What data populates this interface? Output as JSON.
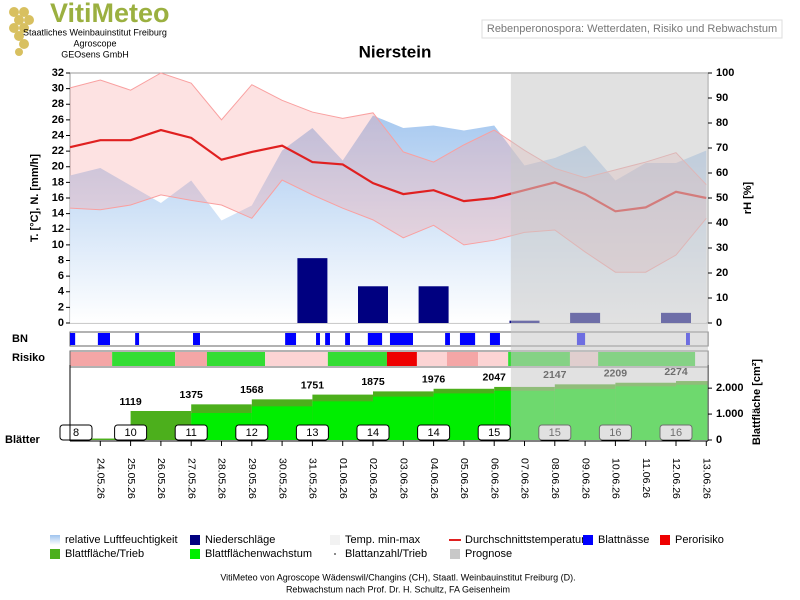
{
  "header": {
    "logo": "VitiMeteo",
    "org": [
      "Staatliches Weinbauinstitut Freiburg",
      "Agroscope",
      "GEOsens GmbH"
    ],
    "subtitle": "Rebenperonospora: Wetterdaten, Risiko und Rebwachstum"
  },
  "chart_data": {
    "type": "weather",
    "title": "Nierstein",
    "categories": [
      null,
      "24.05.26",
      "25.05.26",
      "26.05.26",
      "27.05.26",
      "28.05.26",
      "29.05.26",
      "30.05.26",
      "31.05.26",
      "01.06.26",
      "02.06.26",
      "03.06.26",
      "04.06.26",
      "05.06.26",
      "06.06.26",
      "07.06.26",
      "08.06.26",
      "09.06.26",
      "10.06.26",
      "11.06.26",
      "12.06.26",
      "13.06.26"
    ],
    "ylabel": "T. [°C], N. [mm/h]",
    "ylim": [
      0,
      32
    ],
    "yticks": [
      0,
      2,
      4,
      6,
      8,
      10,
      12,
      14,
      16,
      18,
      20,
      22,
      24,
      26,
      28,
      30,
      32
    ],
    "y2label": "rH [%]",
    "y2lim": [
      0,
      100
    ],
    "y2ticks": [
      0,
      10,
      20,
      30,
      40,
      50,
      60,
      70,
      80,
      90,
      100
    ],
    "series": [
      {
        "name": "relative Luftfeuchtigkeit",
        "color": "#a9c8ec",
        "axis": "y2",
        "values": [
          59,
          62,
          55,
          48,
          57,
          41,
          47,
          69,
          78,
          65,
          83,
          78,
          79,
          77,
          79,
          63,
          66,
          71,
          57,
          64,
          64,
          69
        ]
      },
      {
        "name": "Niederschläge",
        "color": "#000080",
        "values": [
          0,
          0,
          0,
          0,
          0,
          0,
          0,
          0,
          8.3,
          0,
          4.7,
          0,
          4.7,
          0,
          0,
          0.3,
          0,
          1.3,
          0,
          0,
          1.3,
          0
        ]
      },
      {
        "name": "Temp. min-max",
        "color": "#f9a0a0",
        "high": [
          30.1,
          31.1,
          29.8,
          32.0,
          30.7,
          26.0,
          30.5,
          28.5,
          27.0,
          26.2,
          26.9,
          21.9,
          20.6,
          22.8,
          24.7,
          22.1,
          19.8,
          18.6,
          19.6,
          20.6,
          21.8,
          17.7
        ],
        "low": [
          14.7,
          14.5,
          15.1,
          16.4,
          15.7,
          15.1,
          13.4,
          18.3,
          16.4,
          14.7,
          13.2,
          10.9,
          12.5,
          10.0,
          10.6,
          11.6,
          11.9,
          9.1,
          6.5,
          6.5,
          8.7,
          13.4
        ]
      },
      {
        "name": "Durchschnittstemperatur",
        "color": "#e02020",
        "values": [
          22.5,
          23.4,
          23.4,
          24.7,
          23.7,
          20.9,
          21.9,
          22.7,
          20.6,
          20.3,
          17.9,
          16.5,
          17.0,
          15.6,
          16.0,
          17.0,
          18.0,
          16.5,
          14.3,
          14.8,
          16.8,
          16.0
        ]
      }
    ],
    "bn": {
      "label": "BN",
      "name": "Blattnässe",
      "color": "#0000ff",
      "segments": [
        [
          0,
          0.17
        ],
        [
          0.92,
          1.32
        ],
        [
          2.15,
          2.28
        ],
        [
          4.06,
          4.29
        ],
        [
          7.1,
          7.46
        ],
        [
          8.12,
          8.25
        ],
        [
          8.42,
          8.58
        ],
        [
          9.08,
          9.24
        ],
        [
          9.83,
          10.3
        ],
        [
          10.56,
          11.32
        ],
        [
          12.38,
          12.54
        ],
        [
          12.87,
          13.37
        ],
        [
          13.86,
          14.19
        ],
        [
          16.73,
          17.0
        ],
        [
          20.33,
          20.46
        ]
      ]
    },
    "risk": {
      "label": "Risiko",
      "name": "Perorisiko",
      "color": "#ee0000",
      "segments": [
        {
          "start": 0,
          "end": 1.39,
          "color": "#f4a6a6"
        },
        {
          "start": 1.39,
          "end": 3.47,
          "color": "#33dd33"
        },
        {
          "start": 3.47,
          "end": 4.52,
          "color": "#f4a6a6"
        },
        {
          "start": 4.52,
          "end": 6.44,
          "color": "#33dd33"
        },
        {
          "start": 6.44,
          "end": 8.51,
          "color": "#fcd4d4"
        },
        {
          "start": 8.51,
          "end": 10.46,
          "color": "#33dd33"
        },
        {
          "start": 10.46,
          "end": 11.45,
          "color": "#ee0000"
        },
        {
          "start": 11.45,
          "end": 12.44,
          "color": "#fcd4d4"
        },
        {
          "start": 12.44,
          "end": 13.47,
          "color": "#f4a6a6"
        },
        {
          "start": 13.47,
          "end": 14.46,
          "color": "#fcd4d4"
        },
        {
          "start": 14.46,
          "end": 16.5,
          "color": "#33dd33"
        },
        {
          "start": 16.5,
          "end": 17.43,
          "color": "#fcd4d4"
        },
        {
          "start": 17.43,
          "end": 20.63,
          "color": "#33dd33"
        }
      ]
    },
    "leaf": {
      "label": "Blätter",
      "y3label": "Blattfläche [cm²]",
      "y3lim": [
        0,
        2700
      ],
      "y3ticks": [
        0,
        {
          "value": 1000,
          "label": "1.000"
        },
        {
          "value": 2000,
          "label": "2.000"
        }
      ],
      "area": {
        "name": "Blattfläche/Trieb",
        "color": "#4caf1c",
        "values": [
          56,
          null,
          1119,
          null,
          1375,
          null,
          1568,
          null,
          1751,
          null,
          1875,
          null,
          1976,
          null,
          2047,
          null,
          2147,
          null,
          2209,
          null,
          2274,
          null
        ]
      },
      "growth": {
        "name": "Blattflächenwachstum",
        "color": "#00ee00"
      },
      "count": {
        "name": "Blattanzahl/Trieb",
        "values": [
          8,
          null,
          10,
          null,
          11,
          null,
          12,
          null,
          13,
          null,
          14,
          null,
          14,
          null,
          15,
          null,
          15,
          null,
          16,
          null,
          16,
          null
        ]
      }
    },
    "prognose": {
      "name": "Prognose",
      "color": "#c8c8c8",
      "start": 14.55
    }
  },
  "footer": [
    "VitiMeteo von Agroscope Wädenswil/Changins (CH), Staatl. Weinbauinstitut Freiburg (D).",
    "Rebwachstum nach Prof. Dr. H. Schultz, FA Geisenheim"
  ]
}
